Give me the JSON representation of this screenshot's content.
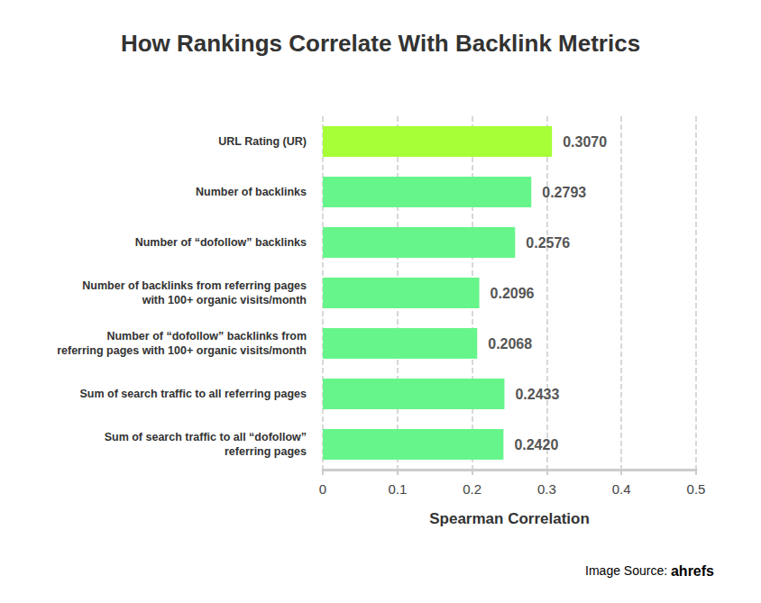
{
  "chart_data": {
    "type": "bar",
    "title": "How Rankings Correlate With Backlink Metrics",
    "orientation": "horizontal",
    "categories": [
      "URL Rating (UR)",
      "Number of backlinks",
      "Number of “dofollow” backlinks",
      "Number of backlinks from referring pages\nwith 100+ organic visits/month",
      "Number of “dofollow” backlinks from\nreferring pages with 100+ organic visits/month",
      "Sum of search traffic to all referring pages",
      "Sum of search traffic to all “dofollow”\nreferring pages"
    ],
    "values": [
      0.307,
      0.2793,
      0.2576,
      0.2096,
      0.2068,
      0.2433,
      0.242
    ],
    "value_labels": [
      "0.3070",
      "0.2793",
      "0.2576",
      "0.2096",
      "0.2068",
      "0.2433",
      "0.2420"
    ],
    "colors": [
      "#a6ff37",
      "#66f58a",
      "#66f58a",
      "#66f58a",
      "#66f58a",
      "#66f58a",
      "#66f58a"
    ],
    "xlabel": "Spearman Correlation",
    "xlim": [
      0,
      0.5
    ],
    "xticks": [
      0,
      0.1,
      0.2,
      0.3,
      0.4,
      0.5
    ],
    "grid": true,
    "data_labels": true,
    "source": {
      "text": "Image Source:",
      "logo": "ahrefs"
    }
  }
}
